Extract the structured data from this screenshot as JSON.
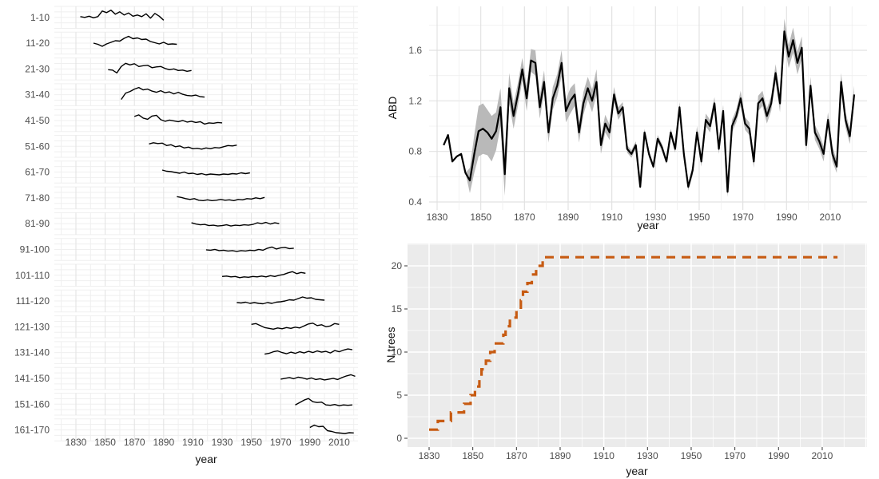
{
  "styles": {
    "background": "#ffffff",
    "tick_text_color": "#4d4d4d",
    "axis_title_color": "#111111",
    "grid_major_on_white": "#e2e2e2",
    "grid_minor_on_white": "#efefef",
    "gray_panel_bg": "#ebebeb",
    "grid_on_gray": "#ffffff",
    "series_line_color": "#000000",
    "ribbon_color": "#b9b9b9",
    "dashed_line_color": "#c75b12",
    "tick_mark_color": "#333333"
  },
  "chart_data": [
    {
      "id": "age_class_facets",
      "type": "line",
      "layout": "horizontal-facets",
      "title": "",
      "xlabel": "year",
      "ylabel": "",
      "x_ticks": [
        1830,
        1850,
        1870,
        1890,
        1910,
        1930,
        1950,
        1970,
        1990,
        2010
      ],
      "x_range": [
        1815,
        2023
      ],
      "grid": "on",
      "legend": "none",
      "note_units": "relative ring-index variation per age class (no y tick labels shown)",
      "facets": [
        {
          "label": "1-10",
          "start_year": 1833,
          "step": 3,
          "rel_values": [
            0.1,
            0.0,
            0.15,
            -0.05,
            0.1,
            0.8,
            0.6,
            0.9,
            0.4,
            0.7,
            0.3,
            0.55,
            0.15,
            0.3,
            0.1,
            0.45,
            -0.1,
            0.5,
            0.15,
            -0.35
          ]
        },
        {
          "label": "11-20",
          "start_year": 1842,
          "step": 3,
          "rel_values": [
            0.0,
            -0.15,
            -0.4,
            -0.1,
            0.1,
            0.3,
            0.25,
            0.6,
            0.85,
            0.55,
            0.65,
            0.45,
            0.5,
            0.2,
            0.05,
            -0.1,
            0.1,
            -0.15,
            -0.1,
            -0.15
          ]
        },
        {
          "label": "21-30",
          "start_year": 1852,
          "step": 3,
          "rel_values": [
            -0.1,
            -0.15,
            -0.5,
            0.3,
            0.7,
            0.5,
            0.65,
            0.3,
            0.4,
            0.45,
            0.15,
            0.25,
            0.3,
            0.05,
            -0.1,
            0.0,
            -0.2,
            -0.15,
            -0.3,
            -0.2
          ]
        },
        {
          "label": "31-40",
          "start_year": 1861,
          "step": 3,
          "rel_values": [
            -0.6,
            0.2,
            0.4,
            0.7,
            0.9,
            0.6,
            0.7,
            0.45,
            0.3,
            0.5,
            0.25,
            0.35,
            0.1,
            0.3,
            0.05,
            -0.1,
            -0.15,
            -0.05,
            -0.25,
            -0.3
          ]
        },
        {
          "label": "41-50",
          "start_year": 1870,
          "step": 3,
          "rel_values": [
            0.5,
            0.7,
            0.3,
            0.15,
            0.55,
            0.65,
            0.1,
            -0.1,
            0.05,
            -0.05,
            -0.15,
            0.0,
            -0.2,
            -0.1,
            -0.25,
            -0.15,
            -0.45,
            -0.3,
            -0.35,
            -0.25,
            -0.3
          ]
        },
        {
          "label": "51-60",
          "start_year": 1880,
          "step": 3,
          "rel_values": [
            0.3,
            0.45,
            0.35,
            0.4,
            0.1,
            0.2,
            -0.05,
            0.05,
            -0.2,
            -0.1,
            -0.3,
            -0.25,
            -0.35,
            -0.2,
            -0.3,
            -0.15,
            -0.2,
            -0.05,
            0.1,
            0.05,
            0.15
          ]
        },
        {
          "label": "61-70",
          "start_year": 1889,
          "step": 3,
          "rel_values": [
            0.25,
            0.1,
            0.05,
            -0.05,
            -0.15,
            0.0,
            -0.2,
            -0.15,
            -0.3,
            -0.2,
            -0.35,
            -0.25,
            -0.3,
            -0.35,
            -0.25,
            -0.3,
            -0.2,
            -0.25,
            -0.1,
            -0.2,
            -0.1
          ]
        },
        {
          "label": "71-80",
          "start_year": 1899,
          "step": 3,
          "rel_values": [
            0.15,
            0.05,
            -0.1,
            -0.2,
            -0.1,
            -0.3,
            -0.35,
            -0.25,
            -0.35,
            -0.3,
            -0.2,
            -0.3,
            -0.25,
            -0.35,
            -0.2,
            -0.25,
            -0.1,
            -0.15,
            0.0,
            -0.1,
            0.05
          ]
        },
        {
          "label": "81-90",
          "start_year": 1909,
          "step": 3,
          "rel_values": [
            0.1,
            -0.05,
            -0.15,
            -0.1,
            -0.25,
            -0.2,
            -0.3,
            -0.25,
            -0.15,
            -0.3,
            -0.2,
            -0.25,
            -0.15,
            -0.2,
            -0.1,
            0.1,
            0.0,
            0.15,
            -0.05,
            0.1,
            0.0
          ]
        },
        {
          "label": "91-100",
          "start_year": 1919,
          "step": 3,
          "rel_values": [
            -0.05,
            -0.1,
            0.0,
            -0.15,
            -0.1,
            -0.2,
            -0.15,
            -0.25,
            -0.15,
            -0.2,
            -0.1,
            -0.15,
            0.0,
            -0.1,
            0.15,
            0.3,
            0.05,
            0.2,
            0.25,
            0.1,
            0.15
          ]
        },
        {
          "label": "101-110",
          "start_year": 1930,
          "step": 3,
          "rel_values": [
            -0.15,
            -0.1,
            -0.2,
            -0.15,
            -0.3,
            -0.2,
            -0.25,
            -0.15,
            -0.2,
            -0.1,
            -0.2,
            -0.05,
            -0.15,
            0.0,
            0.1,
            0.3,
            0.45,
            0.2,
            0.35,
            0.25
          ]
        },
        {
          "label": "111-120",
          "start_year": 1940,
          "step": 3,
          "rel_values": [
            -0.2,
            -0.25,
            -0.15,
            -0.3,
            -0.2,
            -0.3,
            -0.35,
            -0.2,
            -0.3,
            -0.15,
            -0.1,
            0.0,
            0.15,
            0.1,
            0.3,
            0.5,
            0.35,
            0.4,
            0.2,
            0.15,
            0.1
          ]
        },
        {
          "label": "121-130",
          "start_year": 1950,
          "step": 3,
          "rel_values": [
            0.3,
            0.4,
            0.15,
            -0.1,
            -0.2,
            -0.3,
            -0.15,
            -0.25,
            -0.1,
            -0.2,
            -0.05,
            -0.15,
            0.1,
            0.35,
            0.45,
            0.15,
            0.25,
            0.0,
            0.1,
            0.4,
            0.3
          ]
        },
        {
          "label": "131-140",
          "start_year": 1959,
          "step": 3,
          "rel_values": [
            -0.2,
            -0.1,
            0.1,
            0.2,
            0.0,
            -0.15,
            0.05,
            -0.1,
            0.1,
            -0.05,
            0.15,
            0.0,
            0.2,
            0.05,
            0.15,
            -0.05,
            0.25,
            0.1,
            0.3,
            0.45,
            0.35
          ]
        },
        {
          "label": "141-150",
          "start_year": 1970,
          "step": 3,
          "rel_values": [
            -0.1,
            0.0,
            0.1,
            -0.05,
            0.15,
            0.05,
            -0.1,
            0.05,
            -0.15,
            -0.05,
            -0.2,
            -0.1,
            0.0,
            -0.15,
            0.1,
            0.3,
            0.45,
            0.25
          ]
        },
        {
          "label": "151-160",
          "start_year": 1980,
          "step": 3,
          "rel_values": [
            -0.1,
            0.2,
            0.5,
            0.7,
            0.3,
            0.2,
            0.25,
            -0.1,
            -0.15,
            -0.05,
            -0.2,
            -0.1,
            -0.15,
            -0.1
          ]
        },
        {
          "label": "161-170",
          "start_year": 1990,
          "step": 3,
          "rel_values": [
            0.3,
            0.6,
            0.4,
            0.45,
            -0.1,
            -0.2,
            -0.35,
            -0.4,
            -0.45,
            -0.35,
            -0.38
          ]
        }
      ]
    },
    {
      "id": "abd_series",
      "type": "line",
      "style": "line-with-ribbon",
      "title": "",
      "xlabel": "year",
      "ylabel": "ABD",
      "x_ticks": [
        1830,
        1850,
        1870,
        1890,
        1910,
        1930,
        1950,
        1970,
        1990,
        2010
      ],
      "y_ticks": [
        0.4,
        0.8,
        1.2,
        1.6
      ],
      "y_minor": [
        0.6,
        1.0,
        1.4,
        1.8
      ],
      "ylim": [
        0.34,
        1.95
      ],
      "xlim": [
        1826,
        2027
      ],
      "grid": "on",
      "legend": "none",
      "x_start": 1833,
      "x_step": 2,
      "values": [
        0.85,
        0.93,
        0.72,
        0.76,
        0.78,
        0.63,
        0.57,
        0.78,
        0.96,
        0.98,
        0.95,
        0.9,
        0.96,
        1.15,
        0.62,
        1.3,
        1.08,
        1.25,
        1.45,
        1.22,
        1.52,
        1.5,
        1.15,
        1.35,
        0.95,
        1.22,
        1.32,
        1.5,
        1.12,
        1.2,
        1.25,
        0.95,
        1.18,
        1.3,
        1.2,
        1.35,
        0.85,
        1.02,
        0.95,
        1.25,
        1.1,
        1.15,
        0.82,
        0.78,
        0.85,
        0.52,
        0.95,
        0.78,
        0.68,
        0.9,
        0.83,
        0.72,
        0.95,
        0.82,
        1.15,
        0.78,
        0.52,
        0.65,
        0.95,
        0.72,
        1.05,
        1.0,
        1.18,
        0.82,
        1.12,
        0.48,
        1.0,
        1.08,
        1.22,
        1.02,
        0.98,
        0.72,
        1.18,
        1.22,
        1.08,
        1.18,
        1.42,
        1.18,
        1.75,
        1.55,
        1.68,
        1.5,
        1.62,
        0.85,
        1.32,
        0.95,
        0.88,
        0.78,
        1.05,
        0.78,
        0.68,
        1.35,
        1.05,
        0.92,
        1.25
      ],
      "ribbon_halfwidth": [
        0,
        0,
        0,
        0,
        0,
        0,
        0.1,
        0.15,
        0.2,
        0.2,
        0.18,
        0.18,
        0.15,
        0.15,
        0.17,
        0.12,
        0.1,
        0.09,
        0.09,
        0.1,
        0.09,
        0.1,
        0.09,
        0.09,
        0.08,
        0.09,
        0.09,
        0.1,
        0.09,
        0.1,
        0.09,
        0.08,
        0.09,
        0.09,
        0.09,
        0.1,
        0.07,
        0.07,
        0.06,
        0.06,
        0.05,
        0.04,
        0.03,
        0.03,
        0.03,
        0.02,
        0.03,
        0.03,
        0.02,
        0.03,
        0.03,
        0.02,
        0.03,
        0.03,
        0.04,
        0.03,
        0.03,
        0.04,
        0.05,
        0.04,
        0.05,
        0.05,
        0.05,
        0.04,
        0.05,
        0.04,
        0.05,
        0.05,
        0.06,
        0.05,
        0.05,
        0.05,
        0.06,
        0.06,
        0.06,
        0.06,
        0.07,
        0.07,
        0.1,
        0.09,
        0.1,
        0.09,
        0.09,
        0.06,
        0.07,
        0.06,
        0.06,
        0.06,
        0.06,
        0.06,
        0.05,
        0.07,
        0.06,
        0.06,
        0.07
      ]
    },
    {
      "id": "n_trees",
      "type": "line",
      "style": "dashed-step",
      "title": "",
      "xlabel": "year",
      "ylabel": "N trees",
      "x_ticks": [
        1830,
        1850,
        1870,
        1890,
        1910,
        1930,
        1950,
        1970,
        1990,
        2010
      ],
      "y_ticks": [
        0,
        5,
        10,
        15,
        20
      ],
      "ylim": [
        -1,
        22.6
      ],
      "xlim": [
        1820,
        2030
      ],
      "grid": "on",
      "legend": "none",
      "steps": [
        [
          1830,
          1
        ],
        [
          1834,
          2
        ],
        [
          1840,
          3
        ],
        [
          1846,
          4
        ],
        [
          1849,
          5
        ],
        [
          1851,
          6
        ],
        [
          1853,
          7
        ],
        [
          1854,
          8
        ],
        [
          1856,
          9
        ],
        [
          1858,
          10
        ],
        [
          1860,
          11
        ],
        [
          1864,
          12
        ],
        [
          1865,
          13
        ],
        [
          1867,
          14
        ],
        [
          1870,
          15
        ],
        [
          1872,
          16
        ],
        [
          1873,
          17
        ],
        [
          1875,
          18
        ],
        [
          1877,
          19
        ],
        [
          1879,
          20
        ],
        [
          1882,
          21
        ]
      ],
      "end_year": 2017,
      "max_value": 21
    }
  ]
}
